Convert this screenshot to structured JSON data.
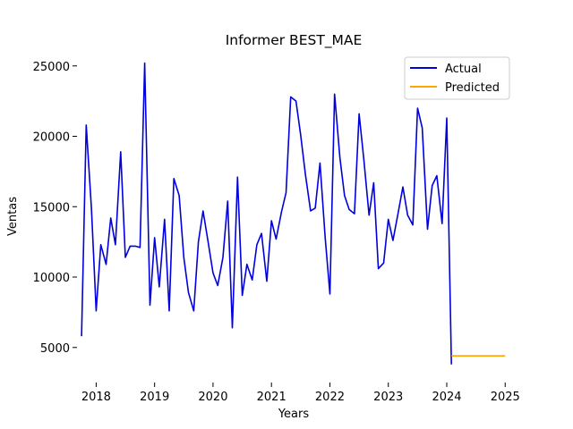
{
  "chart_data": {
    "type": "line",
    "title": "Informer BEST_MAE",
    "xlabel": "Years",
    "ylabel": "Ventas",
    "xlim": [
      2017.58,
      2025.18
    ],
    "ylim": [
      2700,
      26000
    ],
    "x_ticks": [
      2018,
      2019,
      2020,
      2021,
      2022,
      2023,
      2024,
      2025
    ],
    "x_tick_labels": [
      "2018",
      "2019",
      "2020",
      "2021",
      "2022",
      "2023",
      "2024",
      "2025"
    ],
    "y_ticks": [
      5000,
      10000,
      15000,
      20000,
      25000
    ],
    "y_tick_labels": [
      "5000",
      "10000",
      "15000",
      "20000",
      "25000"
    ],
    "grid": false,
    "legend_position": "top-right",
    "series": [
      {
        "name": "Actual",
        "color": "#0000dd",
        "x": [
          2017.75,
          2017.83,
          2017.92,
          2018.0,
          2018.08,
          2018.17,
          2018.25,
          2018.33,
          2018.42,
          2018.5,
          2018.58,
          2018.67,
          2018.75,
          2018.83,
          2018.92,
          2019.0,
          2019.08,
          2019.17,
          2019.25,
          2019.33,
          2019.42,
          2019.5,
          2019.58,
          2019.67,
          2019.75,
          2019.83,
          2019.92,
          2020.0,
          2020.08,
          2020.17,
          2020.25,
          2020.33,
          2020.42,
          2020.5,
          2020.58,
          2020.67,
          2020.75,
          2020.83,
          2020.92,
          2021.0,
          2021.08,
          2021.17,
          2021.25,
          2021.33,
          2021.42,
          2021.5,
          2021.58,
          2021.67,
          2021.75,
          2021.83,
          2021.92,
          2022.0,
          2022.08,
          2022.17,
          2022.25,
          2022.33,
          2022.42,
          2022.5,
          2022.58,
          2022.67,
          2022.75,
          2022.83,
          2022.92,
          2023.0,
          2023.08,
          2023.17,
          2023.25,
          2023.33,
          2023.42,
          2023.5,
          2023.58,
          2023.67,
          2023.75,
          2023.83,
          2023.92,
          2024.0,
          2024.08
        ],
        "y": [
          5800,
          20800,
          14800,
          7600,
          12300,
          10900,
          14200,
          12300,
          18900,
          11400,
          12200,
          12200,
          12100,
          25200,
          8000,
          12800,
          9300,
          14100,
          7600,
          17000,
          15800,
          11400,
          8900,
          7600,
          12500,
          14700,
          12400,
          10300,
          9400,
          11400,
          15400,
          6400,
          17100,
          8700,
          10900,
          9800,
          12300,
          13100,
          9700,
          14000,
          12700,
          14600,
          16000,
          22800,
          22500,
          20100,
          17300,
          14700,
          14900,
          18100,
          12800,
          8800,
          23000,
          18500,
          15800,
          14800,
          14500,
          21600,
          18400,
          14400,
          16700,
          10600,
          11000,
          14100,
          12600,
          14600,
          16400,
          14400,
          13700,
          22000,
          20600,
          13400,
          16500,
          17200,
          13800,
          21300,
          3800
        ]
      },
      {
        "name": "Predicted",
        "color": "#ffa500",
        "x": [
          2024.08,
          2025.0
        ],
        "y": [
          4400,
          4400
        ]
      }
    ]
  }
}
